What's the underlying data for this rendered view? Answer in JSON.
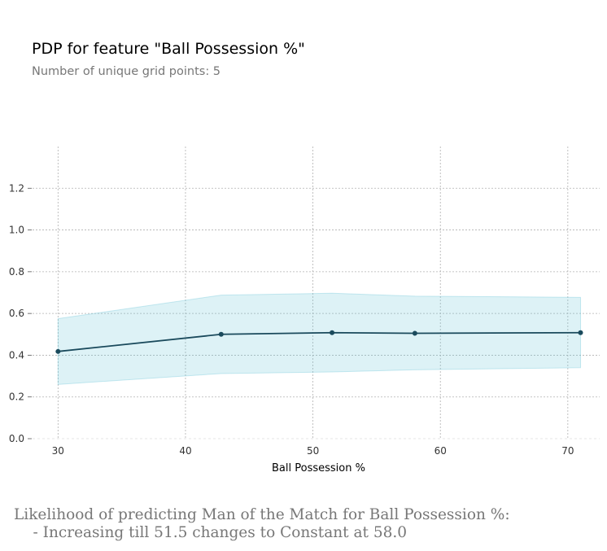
{
  "chart_data": {
    "type": "line",
    "title": "PDP for feature \"Ball Possession %\"",
    "subtitle": "Number of unique grid points: 5",
    "xlabel": "Ball Possession %",
    "ylabel": "",
    "x": [
      30,
      42.8,
      51.5,
      58,
      71
    ],
    "y": [
      0.418,
      0.5,
      0.508,
      0.505,
      0.508
    ],
    "band_upper": [
      0.575,
      0.688,
      0.697,
      0.683,
      0.677
    ],
    "band_lower": [
      0.26,
      0.312,
      0.32,
      0.33,
      0.34
    ],
    "xlim": [
      28,
      72.5
    ],
    "ylim": [
      0,
      1.4
    ],
    "xticks": [
      30,
      40,
      50,
      60,
      70
    ],
    "yticks": [
      "0.0",
      "0.2",
      "0.4",
      "0.6",
      "0.8",
      "1.0",
      "1.2"
    ],
    "grid": true,
    "colors": {
      "line": "#1a4a5c",
      "band": "#66c2d7",
      "grid": "#b0b0b0"
    }
  },
  "caption": {
    "line1": "Likelihood of predicting Man of the Match for Ball Possession %:",
    "line2": "    - Increasing till 51.5 changes to Constant at 58.0"
  }
}
